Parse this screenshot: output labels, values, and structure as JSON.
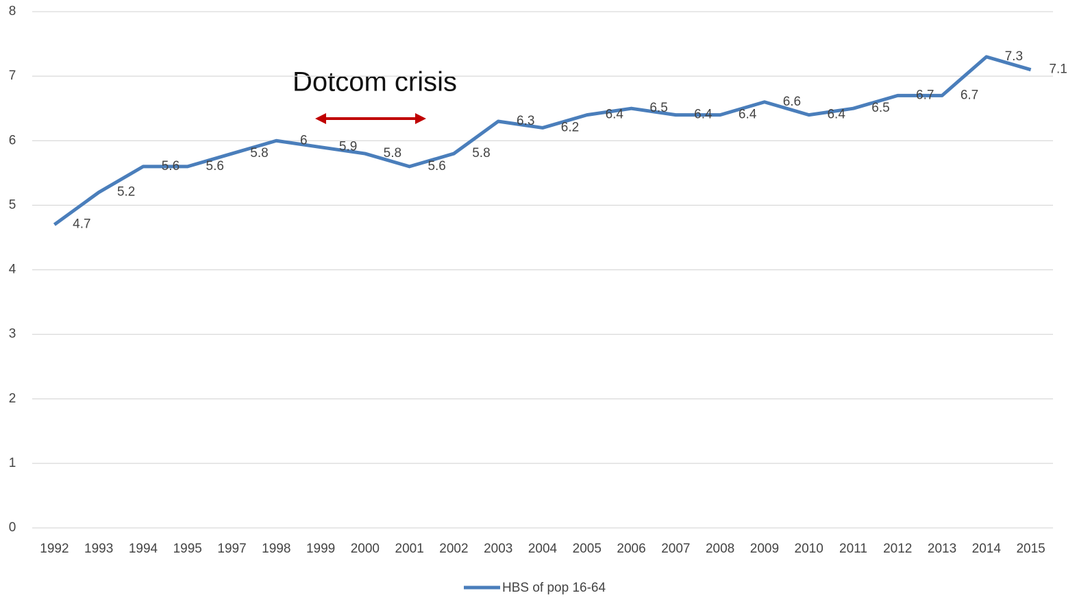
{
  "chart_data": {
    "type": "line",
    "annotation": "Dotcom crisis",
    "categories": [
      "1992",
      "1993",
      "1994",
      "1995",
      "1997",
      "1998",
      "1999",
      "2000",
      "2001",
      "2002",
      "2003",
      "2004",
      "2005",
      "2006",
      "2007",
      "2008",
      "2009",
      "2010",
      "2011",
      "2012",
      "2013",
      "2014",
      "2015"
    ],
    "series": [
      {
        "name": "HBS of pop 16-64",
        "color": "#4a7ebb",
        "values": [
          4.7,
          5.2,
          5.6,
          5.6,
          5.8,
          6,
          5.9,
          5.8,
          5.6,
          5.8,
          6.3,
          6.2,
          6.4,
          6.5,
          6.4,
          6.4,
          6.6,
          6.4,
          6.5,
          6.7,
          6.7,
          7.3,
          7.1
        ]
      }
    ],
    "ylim": [
      0,
      8
    ],
    "yticks": [
      0,
      1,
      2,
      3,
      4,
      5,
      6,
      7,
      8
    ],
    "grid": true,
    "legend": "bottom"
  }
}
